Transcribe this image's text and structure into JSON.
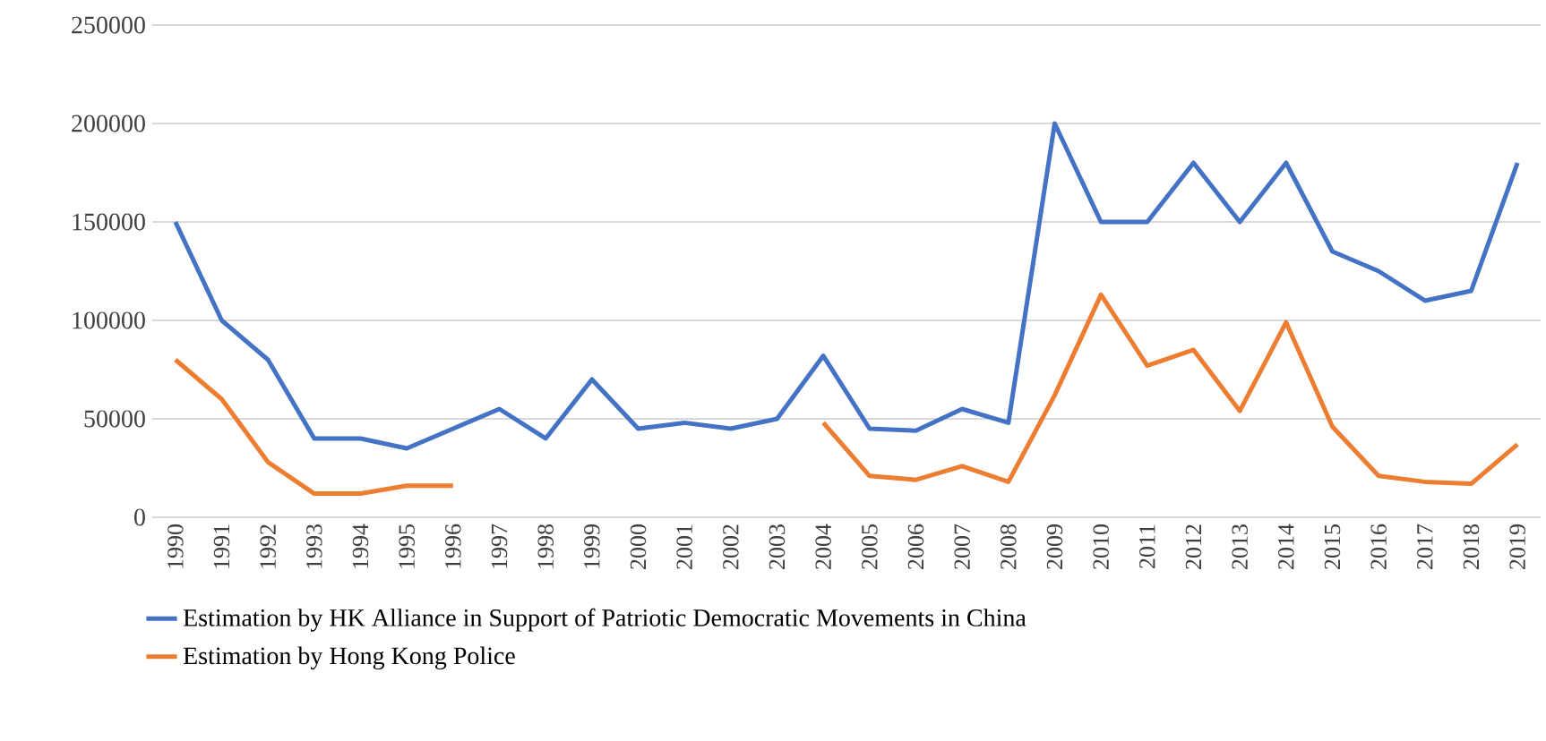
{
  "chart_data": {
    "type": "line",
    "categories": [
      "1990",
      "1991",
      "1992",
      "1993",
      "1994",
      "1995",
      "1996",
      "1997",
      "1998",
      "1999",
      "2000",
      "2001",
      "2002",
      "2003",
      "2004",
      "2005",
      "2006",
      "2007",
      "2008",
      "2009",
      "2010",
      "2011",
      "2012",
      "2013",
      "2014",
      "2015",
      "2016",
      "2017",
      "2018",
      "2019"
    ],
    "series": [
      {
        "name": "Estimation by HK Alliance in Support of Patriotic Democratic Movements in China",
        "color": "#4472c4",
        "values": [
          150000,
          100000,
          80000,
          40000,
          40000,
          35000,
          45000,
          55000,
          40000,
          70000,
          45000,
          48000,
          45000,
          50000,
          82000,
          45000,
          44000,
          55000,
          48000,
          200000,
          150000,
          150000,
          180000,
          150000,
          180000,
          135000,
          125000,
          110000,
          115000,
          180000
        ]
      },
      {
        "name": "Estimation by Hong Kong Police",
        "color": "#ed7d31",
        "values": [
          80000,
          60000,
          28000,
          12000,
          12000,
          16000,
          16000,
          null,
          null,
          null,
          null,
          null,
          null,
          null,
          48000,
          21000,
          19000,
          26000,
          18000,
          62000,
          113000,
          77000,
          85000,
          54000,
          99000,
          46000,
          21000,
          18000,
          17000,
          37000
        ]
      }
    ],
    "ylim": [
      0,
      250000
    ],
    "yticks": [
      0,
      50000,
      100000,
      150000,
      200000,
      250000
    ],
    "grid": "y",
    "legend": "bottom",
    "marker": "none",
    "line_style": "solid"
  }
}
